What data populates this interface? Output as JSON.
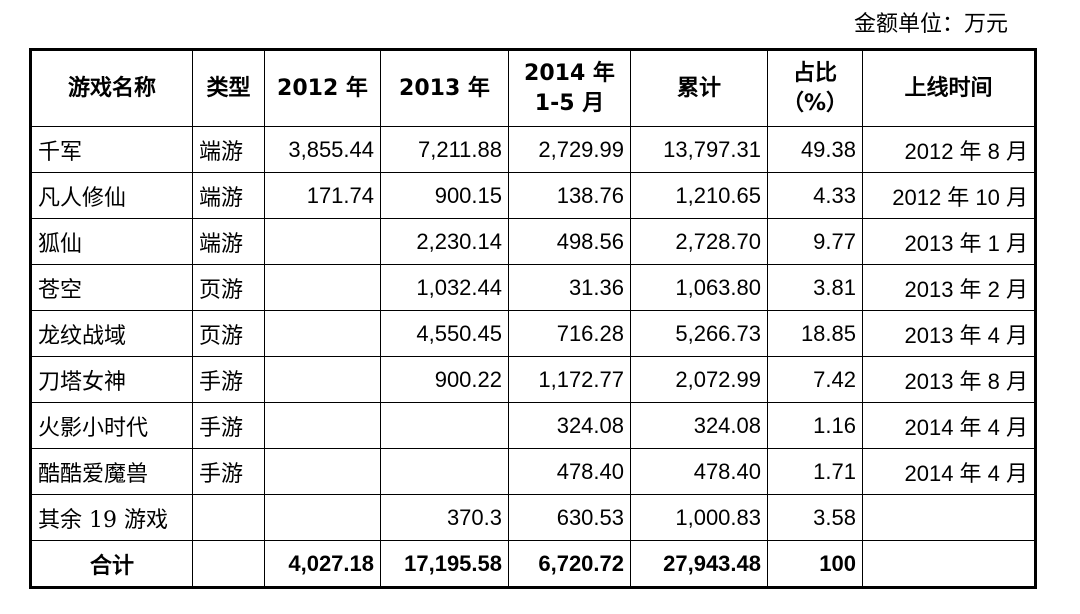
{
  "unit_note": "金额单位：万元",
  "headers": {
    "name": "游戏名称",
    "type": "类型",
    "y2012": "2012 年",
    "y2013": "2013 年",
    "y2014_line1": "2014 年",
    "y2014_line2": "1-5 月",
    "total": "累计",
    "share_line1": "占比",
    "share_line2": "（%）",
    "launch": "上线时间"
  },
  "rows": [
    {
      "name": "千军",
      "type": "端游",
      "y2012": "3,855.44",
      "y2013": "7,211.88",
      "y2014": "2,729.99",
      "total": "13,797.31",
      "share": "49.38",
      "launch": "2012 年 8 月"
    },
    {
      "name": "凡人修仙",
      "type": "端游",
      "y2012": "171.74",
      "y2013": "900.15",
      "y2014": "138.76",
      "total": "1,210.65",
      "share": "4.33",
      "launch": "2012 年 10 月"
    },
    {
      "name": "狐仙",
      "type": "端游",
      "y2012": "",
      "y2013": "2,230.14",
      "y2014": "498.56",
      "total": "2,728.70",
      "share": "9.77",
      "launch": "2013 年 1 月"
    },
    {
      "name": "苍空",
      "type": "页游",
      "y2012": "",
      "y2013": "1,032.44",
      "y2014": "31.36",
      "total": "1,063.80",
      "share": "3.81",
      "launch": "2013 年 2 月"
    },
    {
      "name": "龙纹战域",
      "type": "页游",
      "y2012": "",
      "y2013": "4,550.45",
      "y2014": "716.28",
      "total": "5,266.73",
      "share": "18.85",
      "launch": "2013 年 4 月"
    },
    {
      "name": "刀塔女神",
      "type": "手游",
      "y2012": "",
      "y2013": "900.22",
      "y2014": "1,172.77",
      "total": "2,072.99",
      "share": "7.42",
      "launch": "2013 年 8 月"
    },
    {
      "name": "火影小时代",
      "type": "手游",
      "y2012": "",
      "y2013": "",
      "y2014": "324.08",
      "total": "324.08",
      "share": "1.16",
      "launch": "2014 年 4 月"
    },
    {
      "name": "酷酷爱魔兽",
      "type": "手游",
      "y2012": "",
      "y2013": "",
      "y2014": "478.40",
      "total": "478.40",
      "share": "1.71",
      "launch": "2014 年 4 月"
    },
    {
      "name": "其余 19 游戏",
      "type": "",
      "y2012": "",
      "y2013": "370.3",
      "y2014": "630.53",
      "total": "1,000.83",
      "share": "3.58",
      "launch": ""
    }
  ],
  "total_row": {
    "name": "合计",
    "type": "",
    "y2012": "4,027.18",
    "y2013": "17,195.58",
    "y2014": "6,720.72",
    "total": "27,943.48",
    "share": "100",
    "launch": ""
  }
}
